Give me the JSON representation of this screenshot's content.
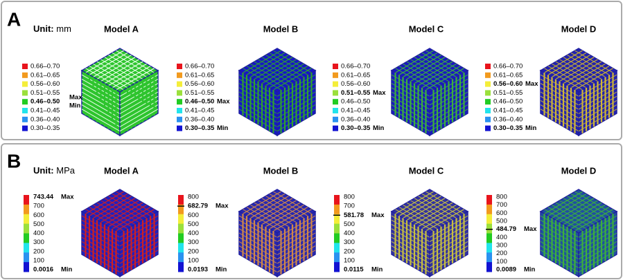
{
  "panels": [
    {
      "letter": "A",
      "unit_label": "Unit:",
      "unit": "mm",
      "models": [
        {
          "title": "Model A",
          "legend": [
            "0.66–0.70",
            "0.61–0.65",
            "0.56–0.60",
            "0.51–0.55",
            {
              "text": "0.46–0.50",
              "mark": [
                "Max",
                "Min"
              ]
            },
            "0.41–0.45",
            "0.36–0.40",
            "0.30–0.35"
          ]
        },
        {
          "title": "Model B",
          "legend": [
            "0.66–0.70",
            "0.61–0.65",
            "0.56–0.60",
            "0.51–0.55",
            {
              "text": "0.46–0.50",
              "mark": "Max"
            },
            "0.41–0.45",
            "0.36–0.40",
            {
              "text": "0.30–0.35",
              "mark": "Min"
            }
          ]
        },
        {
          "title": "Model C",
          "legend": [
            "0.66–0.70",
            "0.61–0.65",
            "0.56–0.60",
            {
              "text": "0.51–0.55",
              "mark": "Max"
            },
            "0.46–0.50",
            "0.41–0.45",
            "0.36–0.40",
            {
              "text": "0.30–0.35",
              "mark": "Min"
            }
          ]
        },
        {
          "title": "Model D",
          "legend": [
            "0.66–0.70",
            "0.61–0.65",
            {
              "text": "0.56–0.60",
              "mark": "Max"
            },
            "0.51–0.55",
            "0.46–0.50",
            "0.41–0.45",
            "0.36–0.40",
            {
              "text": "0.30–0.35",
              "mark": "Min"
            }
          ]
        }
      ]
    },
    {
      "letter": "B",
      "unit_label": "Unit:",
      "unit": "MPa",
      "models": [
        {
          "title": "Model A",
          "legend": [
            {
              "text": "743.44",
              "mark": "Max"
            },
            "700",
            "600",
            "500",
            "400",
            "300",
            "200",
            "100",
            {
              "text": "0.0016",
              "mark": "Min"
            }
          ]
        },
        {
          "title": "Model B",
          "legend": [
            "800",
            {
              "text": "682.79",
              "mark": "Max"
            },
            "600",
            "500",
            "400",
            "300",
            "200",
            "100",
            {
              "text": "0.0193",
              "mark": "Min"
            }
          ]
        },
        {
          "title": "Model C",
          "legend": [
            "800",
            "700",
            {
              "text": "581.78",
              "mark": "Max"
            },
            "500",
            "400",
            "300",
            "200",
            "100",
            {
              "text": "0.0115",
              "mark": "Min"
            }
          ]
        },
        {
          "title": "Model D",
          "legend": [
            "800",
            "700",
            "600",
            "500",
            {
              "text": "484.79",
              "mark": "Max"
            },
            "400",
            "300",
            "200",
            "100",
            {
              "text": "0.0089",
              "mark": "Min"
            }
          ]
        }
      ]
    }
  ]
}
